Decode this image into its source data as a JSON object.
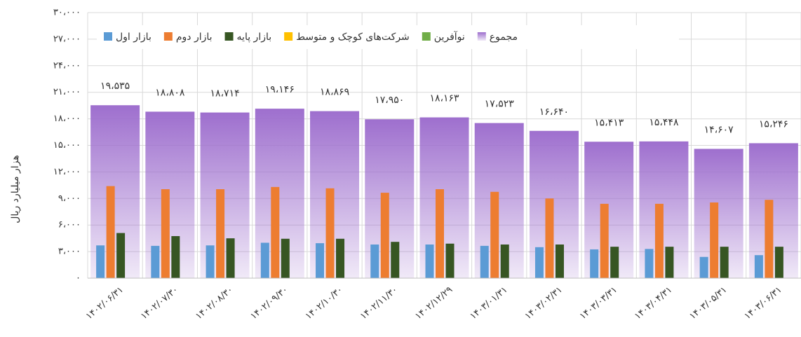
{
  "chart_data": {
    "type": "bar",
    "y_label": "هزار میلیارد ریال",
    "categories": [
      "۱۴۰۲/۰۶/۳۱",
      "۱۴۰۲/۰۷/۳۰",
      "۱۴۰۲/۰۸/۳۰",
      "۱۴۰۲/۰۹/۳۰",
      "۱۴۰۲/۱۰/۳۰",
      "۱۴۰۲/۱۱/۳۰",
      "۱۴۰۲/۱۲/۲۹",
      "۱۴۰۳/۰۱/۳۱",
      "۱۴۰۳/۰۲/۳۱",
      "۱۴۰۳/۰۳/۳۱",
      "۱۴۰۳/۰۴/۳۱",
      "۱۴۰۳/۰۵/۳۱",
      "۱۴۰۳/۰۶/۳۱"
    ],
    "series": [
      {
        "name": "بازار اول",
        "color": "#5b9bd5",
        "values": [
          3700,
          3650,
          3700,
          4000,
          3950,
          3800,
          3800,
          3650,
          3500,
          3250,
          3300,
          2400,
          2600
        ]
      },
      {
        "name": "بازار دوم",
        "color": "#ed7d31",
        "values": [
          10400,
          10050,
          10050,
          10300,
          10150,
          9650,
          10050,
          9750,
          9000,
          8400,
          8400,
          8550,
          8850
        ]
      },
      {
        "name": "بازار پایه",
        "color": "#375623",
        "values": [
          5100,
          4750,
          4500,
          4450,
          4450,
          4100,
          3900,
          3800,
          3800,
          3550,
          3550,
          3550,
          3550
        ]
      },
      {
        "name": "شرکت‌های کوچک و متوسط",
        "color": "#ffc000",
        "values": [
          0,
          0,
          0,
          0,
          0,
          0,
          0,
          0,
          0,
          0,
          0,
          0,
          0
        ]
      },
      {
        "name": "نوآفرین",
        "color": "#70ad47",
        "values": [
          0,
          0,
          0,
          0,
          0,
          0,
          0,
          0,
          0,
          0,
          0,
          0,
          0
        ]
      },
      {
        "name": "مجموع",
        "color": "#9e6fce",
        "values": [
          19535,
          18808,
          18714,
          19146,
          18869,
          17950,
          18163,
          17523,
          16640,
          15413,
          15448,
          14607,
          15246
        ],
        "value_labels": [
          "۱۹،۵۳۵",
          "۱۸،۸۰۸",
          "۱۸،۷۱۴",
          "۱۹،۱۴۶",
          "۱۸،۸۶۹",
          "۱۷،۹۵۰",
          "۱۸،۱۶۳",
          "۱۷،۵۲۳",
          "۱۶،۶۴۰",
          "۱۵،۴۱۳",
          "۱۵،۴۴۸",
          "۱۴،۶۰۷",
          "۱۵،۲۴۶"
        ]
      }
    ],
    "ylim": [
      0,
      30000
    ],
    "yticks": [
      {
        "value": 0,
        "label": "۰"
      },
      {
        "value": 3000,
        "label": "۳،۰۰۰"
      },
      {
        "value": 6000,
        "label": "۶،۰۰۰"
      },
      {
        "value": 9000,
        "label": "۹،۰۰۰"
      },
      {
        "value": 12000,
        "label": "۱۲،۰۰۰"
      },
      {
        "value": 15000,
        "label": "۱۵،۰۰۰"
      },
      {
        "value": 18000,
        "label": "۱۸،۰۰۰"
      },
      {
        "value": 21000,
        "label": "۲۱،۰۰۰"
      },
      {
        "value": 24000,
        "label": "۲۴،۰۰۰"
      },
      {
        "value": 27000,
        "label": "۲۷،۰۰۰"
      },
      {
        "value": 30000,
        "label": "۳۰،۰۰۰"
      }
    ],
    "grid": true
  }
}
